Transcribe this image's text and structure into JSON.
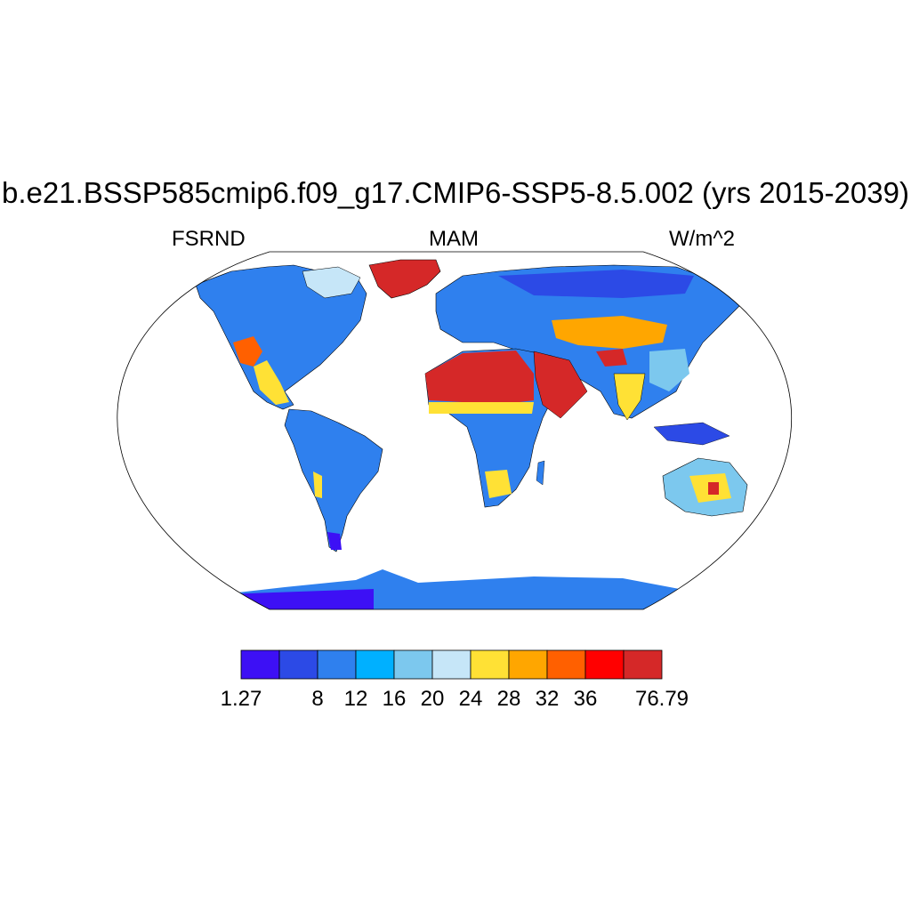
{
  "title": "b.e21.BSSP585cmip6.f09_g17.CMIP6-SSP5-8.5.002 (yrs 2015-2039)",
  "left_string": "FSRND",
  "center_string": "MAM",
  "right_string": "W/m^2",
  "colorbar": {
    "colors": [
      "#3d10f5",
      "#2c4ae6",
      "#2f80ee",
      "#00b0ff",
      "#7cc8ee",
      "#c6e6f8",
      "#ffe135",
      "#ffa600",
      "#ff6000",
      "#ff0000",
      "#d52828"
    ],
    "tick_labels": [
      "1.27",
      "8",
      "12",
      "16",
      "20",
      "24",
      "28",
      "32",
      "36",
      "76.79"
    ],
    "tick_boundaries": [
      0,
      2,
      3,
      4,
      5,
      6,
      7,
      8,
      9,
      11
    ]
  },
  "chart_data": {
    "type": "heatmap",
    "projection": "Robinson",
    "variable": "FSRND",
    "season": "MAM",
    "units": "W/m^2",
    "levels": [
      1.27,
      4,
      8,
      12,
      16,
      20,
      24,
      28,
      32,
      36,
      40,
      76.79
    ],
    "regions": [
      {
        "region": "Sahara / Arabian Peninsula",
        "color": "#d52828"
      },
      {
        "region": "Greenland",
        "color": "#d52828"
      },
      {
        "region": "Antarctica",
        "color": "#3d10f5"
      },
      {
        "region": "Central Asia / Tibet",
        "color": "#ffa600"
      },
      {
        "region": "Amazon",
        "color": "#2f80ee"
      },
      {
        "region": "Central Africa",
        "color": "#2f80ee"
      },
      {
        "region": "Siberia",
        "color": "#2c4ae6"
      },
      {
        "region": "Australian interior",
        "color": "#ffe135"
      },
      {
        "region": "US Southwest",
        "color": "#ff6000"
      }
    ]
  }
}
